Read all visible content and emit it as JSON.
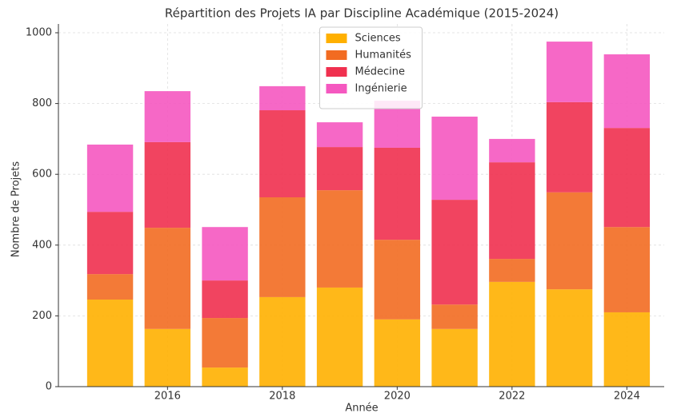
{
  "chart_data": {
    "type": "stacked_bar",
    "title": "Répartition des Projets IA par Discipline Académique (2015-2024)",
    "xlabel": "Année",
    "ylabel": "Nombre de Projets",
    "x": [
      2015,
      2016,
      2017,
      2018,
      2019,
      2020,
      2021,
      2022,
      2023,
      2024
    ],
    "series": [
      {
        "name": "Sciences",
        "color": "#ffb000",
        "values": [
          246,
          163,
          54,
          253,
          280,
          190,
          163,
          296,
          275,
          210
        ]
      },
      {
        "name": "Humanités",
        "color": "#f26b21",
        "values": [
          72,
          286,
          140,
          282,
          275,
          225,
          69,
          65,
          274,
          241
        ]
      },
      {
        "name": "Médecine",
        "color": "#f0304f",
        "values": [
          176,
          242,
          106,
          246,
          122,
          260,
          296,
          273,
          255,
          280
        ]
      },
      {
        "name": "Ingénierie",
        "color": "#f558c0",
        "values": [
          190,
          144,
          151,
          68,
          70,
          133,
          235,
          66,
          171,
          208
        ]
      }
    ],
    "xlim": [
      2014.1,
      2024.65
    ],
    "xticks": [
      2016,
      2018,
      2020,
      2022,
      2024
    ],
    "ylim": [
      0,
      1000
    ],
    "yticks": [
      0,
      200,
      400,
      600,
      800,
      1000
    ],
    "grid": true,
    "legend": "upper center"
  }
}
